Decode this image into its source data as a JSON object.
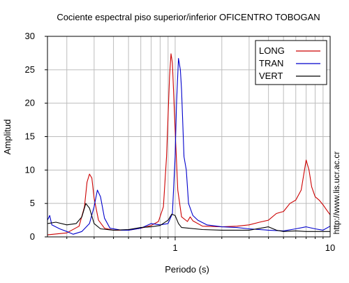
{
  "chart_data": {
    "type": "line",
    "title": "Cociente espectral piso superior/inferior OFICENTRO TOBOGAN",
    "xlabel": "Periodo (s)",
    "ylabel": "Amplitud",
    "side_note": "http://www.lis.ucr.ac.cr",
    "x_scale": "log",
    "xlim": [
      0.15,
      10
    ],
    "ylim": [
      0,
      30
    ],
    "x_tick_labels": [
      "1",
      "10"
    ],
    "y_ticks": [
      0,
      5,
      10,
      15,
      20,
      25,
      30
    ],
    "grid": true,
    "legend_position": "top-right",
    "series": [
      {
        "name": "LONG",
        "color": "#cc0000",
        "points": [
          [
            0.15,
            0.3
          ],
          [
            0.2,
            0.6
          ],
          [
            0.24,
            1.6
          ],
          [
            0.26,
            4.5
          ],
          [
            0.27,
            8.2
          ],
          [
            0.28,
            9.4
          ],
          [
            0.29,
            8.8
          ],
          [
            0.3,
            5.8
          ],
          [
            0.32,
            2.5
          ],
          [
            0.35,
            1.3
          ],
          [
            0.4,
            1.0
          ],
          [
            0.5,
            1.0
          ],
          [
            0.6,
            1.3
          ],
          [
            0.7,
            1.7
          ],
          [
            0.78,
            2.3
          ],
          [
            0.84,
            4.5
          ],
          [
            0.88,
            12.0
          ],
          [
            0.92,
            24.0
          ],
          [
            0.94,
            27.4
          ],
          [
            0.96,
            26.0
          ],
          [
            1.0,
            16.0
          ],
          [
            1.04,
            7.0
          ],
          [
            1.1,
            3.0
          ],
          [
            1.2,
            2.3
          ],
          [
            1.25,
            3.0
          ],
          [
            1.3,
            2.4
          ],
          [
            1.5,
            1.6
          ],
          [
            2.0,
            1.5
          ],
          [
            2.5,
            1.6
          ],
          [
            3.0,
            1.8
          ],
          [
            3.5,
            2.2
          ],
          [
            4.0,
            2.5
          ],
          [
            4.5,
            3.5
          ],
          [
            5.0,
            3.8
          ],
          [
            5.5,
            5.0
          ],
          [
            6.0,
            5.5
          ],
          [
            6.5,
            7.0
          ],
          [
            7.0,
            11.5
          ],
          [
            7.3,
            10.0
          ],
          [
            7.6,
            7.5
          ],
          [
            8.0,
            6.0
          ],
          [
            8.5,
            5.5
          ],
          [
            9.0,
            4.8
          ],
          [
            9.5,
            4.0
          ],
          [
            10.0,
            3.3
          ]
        ]
      },
      {
        "name": "TRAN",
        "color": "#0000cc",
        "points": [
          [
            0.15,
            2.5
          ],
          [
            0.155,
            3.2
          ],
          [
            0.16,
            1.8
          ],
          [
            0.18,
            1.2
          ],
          [
            0.2,
            0.8
          ],
          [
            0.22,
            0.4
          ],
          [
            0.25,
            0.8
          ],
          [
            0.28,
            2.0
          ],
          [
            0.3,
            4.5
          ],
          [
            0.315,
            7.0
          ],
          [
            0.33,
            6.0
          ],
          [
            0.35,
            2.8
          ],
          [
            0.38,
            1.3
          ],
          [
            0.45,
            1.0
          ],
          [
            0.5,
            1.0
          ],
          [
            0.6,
            1.3
          ],
          [
            0.7,
            2.0
          ],
          [
            0.8,
            1.8
          ],
          [
            0.9,
            2.0
          ],
          [
            0.96,
            3.5
          ],
          [
            1.0,
            12.0
          ],
          [
            1.02,
            20.0
          ],
          [
            1.05,
            26.7
          ],
          [
            1.08,
            25.0
          ],
          [
            1.1,
            22.0
          ],
          [
            1.14,
            12.0
          ],
          [
            1.18,
            10.0
          ],
          [
            1.22,
            5.0
          ],
          [
            1.3,
            3.2
          ],
          [
            1.4,
            2.5
          ],
          [
            1.6,
            1.8
          ],
          [
            2.0,
            1.5
          ],
          [
            2.5,
            1.4
          ],
          [
            3.0,
            1.2
          ],
          [
            4.0,
            1.0
          ],
          [
            5.0,
            0.9
          ],
          [
            6.0,
            1.2
          ],
          [
            7.0,
            1.5
          ],
          [
            8.0,
            1.2
          ],
          [
            9.0,
            1.0
          ],
          [
            10.0,
            1.6
          ]
        ]
      },
      {
        "name": "VERT",
        "color": "#000000",
        "points": [
          [
            0.15,
            2.0
          ],
          [
            0.17,
            2.2
          ],
          [
            0.2,
            1.8
          ],
          [
            0.23,
            2.0
          ],
          [
            0.25,
            3.0
          ],
          [
            0.265,
            5.0
          ],
          [
            0.28,
            4.3
          ],
          [
            0.3,
            2.0
          ],
          [
            0.33,
            1.2
          ],
          [
            0.4,
            1.0
          ],
          [
            0.5,
            1.1
          ],
          [
            0.6,
            1.4
          ],
          [
            0.7,
            1.5
          ],
          [
            0.8,
            1.7
          ],
          [
            0.9,
            2.5
          ],
          [
            0.95,
            3.4
          ],
          [
            1.0,
            3.2
          ],
          [
            1.05,
            2.0
          ],
          [
            1.1,
            1.4
          ],
          [
            1.5,
            1.1
          ],
          [
            2.0,
            1.0
          ],
          [
            3.0,
            1.0
          ],
          [
            4.0,
            1.5
          ],
          [
            4.5,
            1.0
          ],
          [
            5.0,
            0.8
          ],
          [
            6.0,
            0.9
          ],
          [
            7.0,
            0.8
          ],
          [
            8.0,
            0.8
          ],
          [
            10.0,
            0.8
          ]
        ]
      }
    ]
  }
}
